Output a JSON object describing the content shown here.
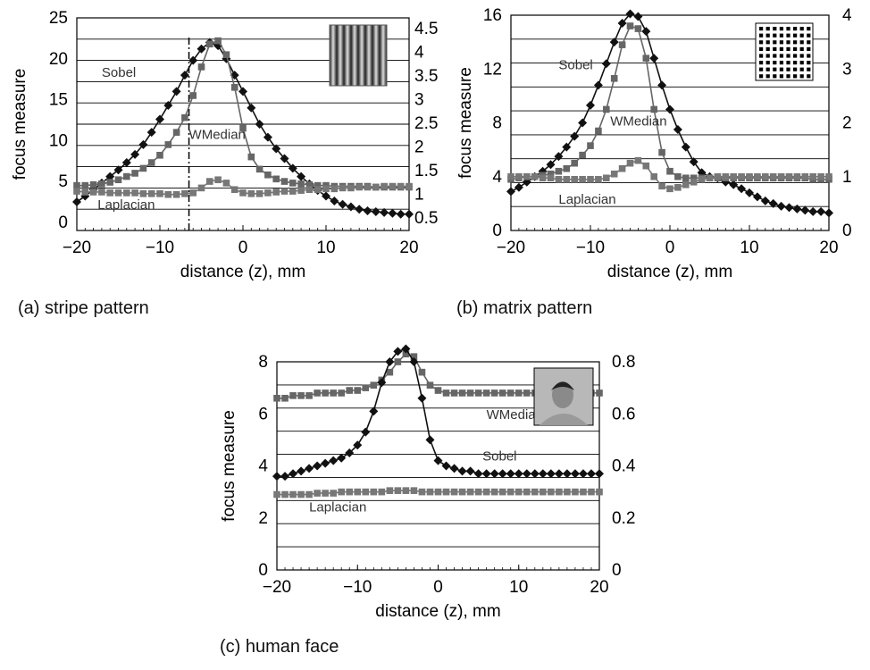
{
  "figure": {
    "captions": [
      "(a) stripe pattern",
      "(b) matrix pattern",
      "(c) human face"
    ]
  },
  "colors": {
    "sobel": "#111111",
    "wmedian": "#666666",
    "laplacian": "#777777",
    "grid": "#000000"
  },
  "chart_data": [
    {
      "id": "a",
      "type": "line",
      "caption": "(a) stripe pattern",
      "xlabel": "distance  (z), mm",
      "ylabel": "focus measure",
      "xlim": [
        -20,
        20
      ],
      "xticks": [
        -20,
        -10,
        0,
        10,
        20
      ],
      "xtick_labels": [
        "−20",
        "−10",
        "0",
        "10",
        "20"
      ],
      "ylim": [
        -1,
        25
      ],
      "yticks": [
        0,
        5,
        10,
        15,
        20,
        25
      ],
      "y2_ticks": [
        "0.5",
        "1",
        "1.5",
        "2",
        "2.5",
        "3",
        "3.5",
        "4",
        "4.5"
      ],
      "marker_line_x": -6.5,
      "inset": "stripe",
      "series": [
        {
          "name": "Sobel",
          "marker": "diamond",
          "color": "#111111",
          "x": [
            -20,
            -19,
            -18,
            -17,
            -16,
            -15,
            -14,
            -13,
            -12,
            -11,
            -10,
            -9,
            -8,
            -7,
            -6,
            -5,
            -4,
            -3,
            -2,
            -1,
            0,
            1,
            2,
            3,
            4,
            5,
            6,
            7,
            8,
            9,
            10,
            11,
            12,
            13,
            14,
            15,
            16,
            17,
            18,
            19,
            20
          ],
          "values": [
            2.5,
            3.2,
            4.0,
            4.8,
            5.6,
            6.4,
            7.3,
            8.3,
            9.5,
            11,
            12.6,
            14.3,
            16,
            18,
            19.8,
            21.2,
            22,
            21.6,
            20,
            18,
            16,
            14,
            12,
            10.4,
            9,
            7.8,
            6.6,
            5.6,
            4.7,
            3.9,
            3.2,
            2.6,
            2.2,
            1.9,
            1.6,
            1.4,
            1.3,
            1.2,
            1.1,
            1.0,
            1.0
          ],
          "label_x": -17,
          "label_y": 17.8
        },
        {
          "name": "WMedian",
          "marker": "square",
          "color": "#666666",
          "x": [
            -20,
            -19,
            -18,
            -17,
            -16,
            -15,
            -14,
            -13,
            -12,
            -11,
            -10,
            -9,
            -8,
            -7,
            -6,
            -5,
            -4,
            -3,
            -2,
            -1,
            0,
            1,
            2,
            3,
            4,
            5,
            6,
            7,
            8,
            9,
            10,
            11,
            12,
            13,
            14,
            15,
            16,
            17,
            18,
            19,
            20
          ],
          "values": [
            4.5,
            4.5,
            4.6,
            4.7,
            4.9,
            5.2,
            5.6,
            6.0,
            6.6,
            7.3,
            8.2,
            9.5,
            11,
            12.8,
            15.5,
            19,
            21.8,
            22.2,
            20.5,
            16.5,
            11.5,
            8,
            6.5,
            5.8,
            5.3,
            5.0,
            4.8,
            4.7,
            4.6,
            4.5,
            4.5,
            4.4,
            4.4,
            4.4,
            4.4,
            4.4,
            4.3,
            4.3,
            4.3,
            4.3,
            4.3
          ],
          "label_x": -6.5,
          "label_y": 10.2
        },
        {
          "name": "Laplacian",
          "marker": "square",
          "color": "#777777",
          "x": [
            -20,
            -19,
            -18,
            -17,
            -16,
            -15,
            -14,
            -13,
            -12,
            -11,
            -10,
            -9,
            -8,
            -7,
            -6,
            -5,
            -4,
            -3,
            -2,
            -1,
            0,
            1,
            2,
            3,
            4,
            5,
            6,
            7,
            8,
            9,
            10,
            11,
            12,
            13,
            14,
            15,
            16,
            17,
            18,
            19,
            20
          ],
          "values": [
            3.8,
            3.7,
            3.7,
            3.7,
            3.6,
            3.6,
            3.6,
            3.6,
            3.5,
            3.5,
            3.5,
            3.4,
            3.4,
            3.5,
            3.6,
            4.2,
            5.0,
            5.2,
            4.8,
            4.0,
            3.6,
            3.5,
            3.5,
            3.6,
            3.7,
            3.8,
            3.8,
            3.9,
            4.0,
            4.0,
            4.1,
            4.1,
            4.2,
            4.2,
            4.3,
            4.3,
            4.3,
            4.4,
            4.4,
            4.4,
            4.4
          ],
          "label_x": -17.5,
          "label_y": 1.6
        }
      ]
    },
    {
      "id": "b",
      "type": "line",
      "caption": "(b) matrix pattern",
      "xlabel": "distance  (z), mm",
      "ylabel": "focus measure",
      "xlim": [
        -20,
        20
      ],
      "xticks": [
        -20,
        -10,
        0,
        10,
        20
      ],
      "xtick_labels": [
        "−20",
        "−10",
        "0",
        "10",
        "20"
      ],
      "ylim": [
        0,
        16
      ],
      "yticks": [
        0,
        4,
        8,
        12,
        16
      ],
      "y2_ticks": [
        "0",
        "1",
        "2",
        "3",
        "4"
      ],
      "inset": "matrix",
      "series": [
        {
          "name": "Sobel",
          "marker": "diamond",
          "color": "#111111",
          "x": [
            -20,
            -19,
            -18,
            -17,
            -16,
            -15,
            -14,
            -13,
            -12,
            -11,
            -10,
            -9,
            -8,
            -7,
            -6,
            -5,
            -4,
            -3,
            -2,
            -1,
            0,
            1,
            2,
            3,
            4,
            5,
            6,
            7,
            8,
            9,
            10,
            11,
            12,
            13,
            14,
            15,
            16,
            17,
            18,
            19,
            20
          ],
          "values": [
            2.9,
            3.2,
            3.6,
            4.0,
            4.4,
            4.9,
            5.5,
            6.2,
            7.0,
            8.0,
            9.3,
            10.8,
            12.4,
            14,
            15.4,
            16.1,
            15.9,
            14.8,
            12.8,
            10.8,
            9.0,
            7.5,
            6.2,
            5.1,
            4.3,
            4.0,
            3.9,
            3.6,
            3.4,
            3.1,
            2.8,
            2.5,
            2.2,
            2.0,
            1.8,
            1.7,
            1.6,
            1.5,
            1.4,
            1.4,
            1.3
          ],
          "label_x": -14,
          "label_y": 12.0
        },
        {
          "name": "WMedian",
          "marker": "square",
          "color": "#666666",
          "x": [
            -20,
            -19,
            -18,
            -17,
            -16,
            -15,
            -14,
            -13,
            -12,
            -11,
            -10,
            -9,
            -8,
            -7,
            -6,
            -5,
            -4,
            -3,
            -2,
            -1,
            0,
            1,
            2,
            3,
            4,
            5,
            6,
            7,
            8,
            9,
            10,
            11,
            12,
            13,
            14,
            15,
            16,
            17,
            18,
            19,
            20
          ],
          "values": [
            3.8,
            3.9,
            4.0,
            4.0,
            4.1,
            4.2,
            4.4,
            4.6,
            5.0,
            5.6,
            6.3,
            7.4,
            9.0,
            11.3,
            13.8,
            15.2,
            15.0,
            12.8,
            9.0,
            5.8,
            4.4,
            4.0,
            3.9,
            3.9,
            3.9,
            3.9,
            3.9,
            3.9,
            3.9,
            3.9,
            3.9,
            3.9,
            3.9,
            3.9,
            3.9,
            3.9,
            3.9,
            3.9,
            3.8,
            3.8,
            3.8
          ],
          "label_x": -7.5,
          "label_y": 7.8
        },
        {
          "name": "Laplacian",
          "marker": "square",
          "color": "#777777",
          "x": [
            -20,
            -19,
            -18,
            -17,
            -16,
            -15,
            -14,
            -13,
            -12,
            -11,
            -10,
            -9,
            -8,
            -7,
            -6,
            -5,
            -4,
            -3,
            -2,
            -1,
            0,
            1,
            2,
            3,
            4,
            5,
            6,
            7,
            8,
            9,
            10,
            11,
            12,
            13,
            14,
            15,
            16,
            17,
            18,
            19,
            20
          ],
          "values": [
            4.0,
            4.0,
            4.0,
            4.0,
            3.9,
            3.9,
            3.8,
            3.8,
            3.8,
            3.8,
            3.8,
            3.8,
            3.9,
            4.2,
            4.6,
            5.0,
            5.2,
            4.8,
            4.0,
            3.3,
            3.1,
            3.2,
            3.4,
            3.6,
            3.8,
            3.9,
            4.0,
            4.0,
            4.0,
            4.0,
            4.0,
            4.0,
            4.0,
            4.0,
            4.0,
            4.0,
            4.0,
            4.0,
            4.0,
            4.0,
            4.0
          ],
          "label_x": -14,
          "label_y": 2.0
        }
      ]
    },
    {
      "id": "c",
      "type": "line",
      "caption": "(c) human face",
      "xlabel": "distance  (z),  mm",
      "ylabel": "focus measure",
      "xlim": [
        -20,
        20
      ],
      "xticks": [
        -20,
        -10,
        0,
        10,
        20
      ],
      "xtick_labels": [
        "−20",
        "−10",
        "0",
        "10",
        "20"
      ],
      "ylim": [
        0,
        8
      ],
      "yticks": [
        0,
        2,
        4,
        6,
        8
      ],
      "y2_ticks": [
        "0",
        "0.2",
        "0.4",
        "0.6",
        "0.8"
      ],
      "inset": "photo",
      "series": [
        {
          "name": "WMedian",
          "marker": "square",
          "color": "#666666",
          "x": [
            -20,
            -19,
            -18,
            -17,
            -16,
            -15,
            -14,
            -13,
            -12,
            -11,
            -10,
            -9,
            -8,
            -7,
            -6,
            -5,
            -4,
            -3,
            -2,
            -1,
            0,
            1,
            2,
            3,
            4,
            5,
            6,
            7,
            8,
            9,
            10,
            11,
            12,
            13,
            14,
            15,
            16,
            17,
            18,
            19,
            20
          ],
          "values": [
            6.6,
            6.6,
            6.7,
            6.7,
            6.7,
            6.8,
            6.8,
            6.8,
            6.8,
            6.9,
            6.9,
            7.0,
            7.1,
            7.3,
            7.6,
            8.0,
            8.3,
            8.2,
            7.6,
            7.1,
            6.9,
            6.8,
            6.8,
            6.8,
            6.8,
            6.8,
            6.8,
            6.8,
            6.8,
            6.8,
            6.8,
            6.8,
            6.8,
            6.8,
            6.8,
            6.8,
            6.8,
            6.8,
            6.8,
            6.8,
            6.8
          ],
          "label_x": 6,
          "label_y": 5.8
        },
        {
          "name": "Sobel",
          "marker": "diamond",
          "color": "#111111",
          "x": [
            -20,
            -19,
            -18,
            -17,
            -16,
            -15,
            -14,
            -13,
            -12,
            -11,
            -10,
            -9,
            -8,
            -7,
            -6,
            -5,
            -4,
            -3,
            -2,
            -1,
            0,
            1,
            2,
            3,
            4,
            5,
            6,
            7,
            8,
            9,
            10,
            11,
            12,
            13,
            14,
            15,
            16,
            17,
            18,
            19,
            20
          ],
          "values": [
            3.6,
            3.6,
            3.7,
            3.8,
            3.9,
            4.0,
            4.1,
            4.2,
            4.3,
            4.5,
            4.8,
            5.3,
            6.1,
            7.2,
            8.0,
            8.4,
            8.5,
            8.0,
            6.6,
            5.0,
            4.2,
            4.0,
            3.9,
            3.8,
            3.8,
            3.7,
            3.7,
            3.7,
            3.7,
            3.7,
            3.7,
            3.7,
            3.7,
            3.7,
            3.7,
            3.7,
            3.7,
            3.7,
            3.7,
            3.7,
            3.7
          ],
          "label_x": 5.5,
          "label_y": 4.2
        },
        {
          "name": "Laplacian",
          "marker": "square",
          "color": "#777777",
          "x": [
            -20,
            -19,
            -18,
            -17,
            -16,
            -15,
            -14,
            -13,
            -12,
            -11,
            -10,
            -9,
            -8,
            -7,
            -6,
            -5,
            -4,
            -3,
            -2,
            -1,
            0,
            1,
            2,
            3,
            4,
            5,
            6,
            7,
            8,
            9,
            10,
            11,
            12,
            13,
            14,
            15,
            16,
            17,
            18,
            19,
            20
          ],
          "values": [
            2.9,
            2.9,
            2.9,
            2.9,
            2.9,
            2.95,
            2.95,
            2.95,
            3.0,
            3.0,
            3.0,
            3.0,
            3.0,
            3.0,
            3.05,
            3.05,
            3.05,
            3.05,
            3.0,
            3.0,
            3.0,
            3.0,
            3.0,
            3.0,
            3.0,
            3.0,
            3.0,
            3.0,
            3.0,
            3.0,
            3.0,
            3.0,
            3.0,
            3.0,
            3.0,
            3.0,
            3.0,
            3.0,
            3.0,
            3.0,
            3.0
          ],
          "label_x": -16,
          "label_y": 2.25
        }
      ]
    }
  ]
}
